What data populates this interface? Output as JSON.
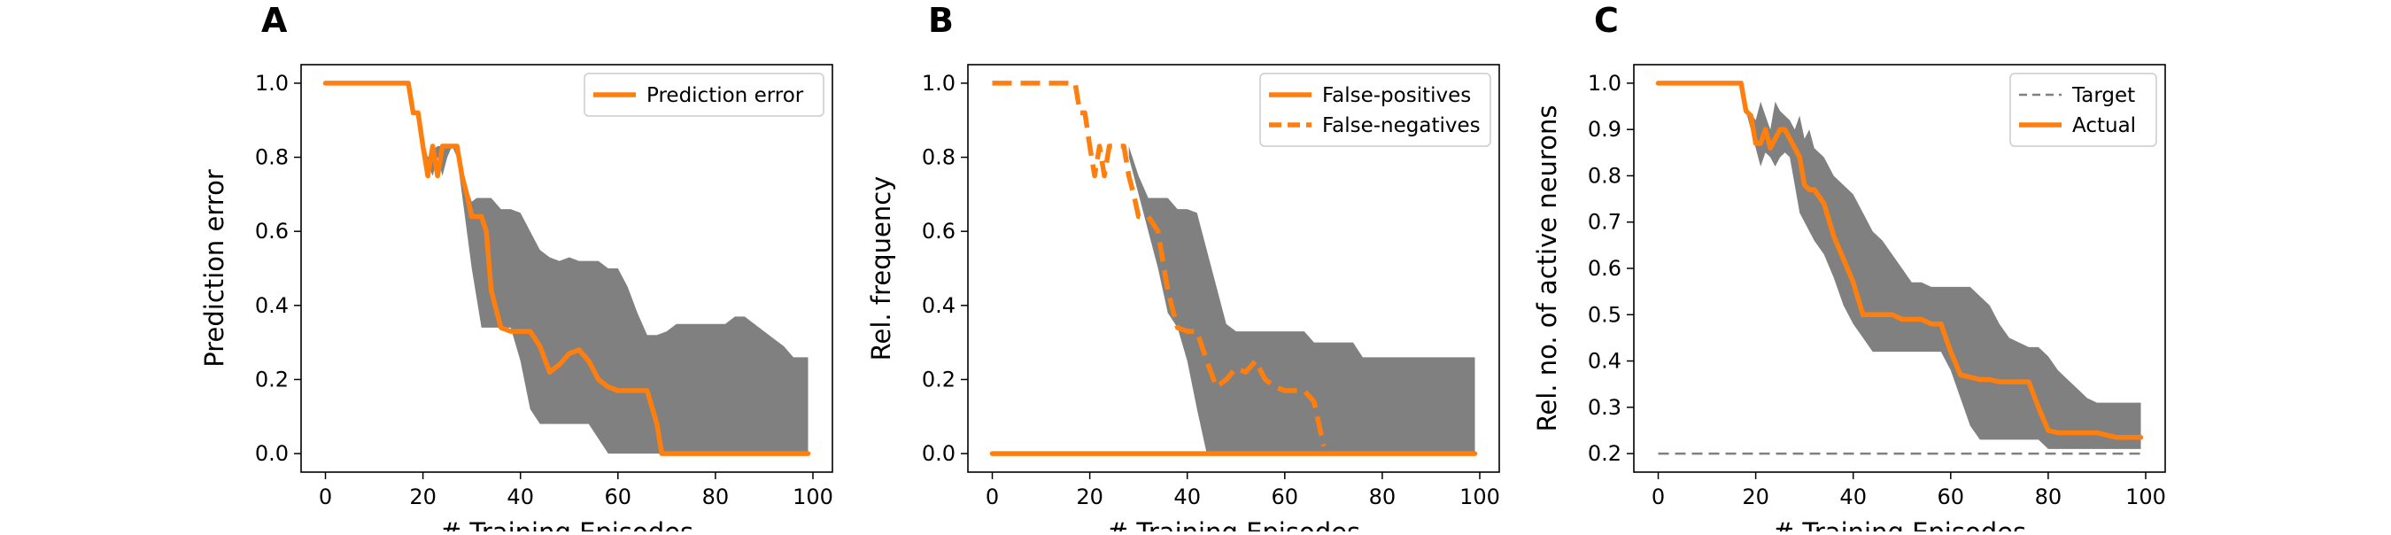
{
  "figure": {
    "panel_letters": [
      "A",
      "B",
      "C"
    ]
  },
  "chart_data": [
    {
      "type": "line",
      "panel": "A",
      "title": "",
      "xlabel": "# Training Episodes",
      "ylabel": "Prediction error",
      "xlim": [
        -5,
        104
      ],
      "ylim": [
        -0.05,
        1.05
      ],
      "xticks": [
        0,
        20,
        40,
        60,
        80,
        100
      ],
      "yticks": [
        0.0,
        0.2,
        0.4,
        0.6,
        0.8,
        1.0
      ],
      "ytick_decimals": 1,
      "grid": false,
      "legend": "top-right",
      "band": {
        "color": "#808080",
        "x": [
          17,
          18,
          20,
          21,
          22,
          23,
          24,
          25,
          26,
          27,
          28,
          29,
          30,
          31,
          32,
          34,
          36,
          38,
          40,
          42,
          44,
          46,
          48,
          50,
          52,
          54,
          56,
          58,
          60,
          62,
          64,
          66,
          68,
          70,
          72,
          74,
          76,
          78,
          80,
          82,
          84,
          86,
          88,
          90,
          92,
          94,
          96,
          98,
          99
        ],
        "lower": [
          1.0,
          0.92,
          0.85,
          0.78,
          0.75,
          0.8,
          0.75,
          0.8,
          0.83,
          0.8,
          0.7,
          0.6,
          0.5,
          0.42,
          0.34,
          0.34,
          0.34,
          0.34,
          0.25,
          0.12,
          0.08,
          0.08,
          0.08,
          0.08,
          0.08,
          0.08,
          0.04,
          0.0,
          0.0,
          0.0,
          0.0,
          0.0,
          0.0,
          0.0,
          0.0,
          0.0,
          0.0,
          0.0,
          0.0,
          0.0,
          0.0,
          0.0,
          0.0,
          0.0,
          0.0,
          0.0,
          0.0,
          0.0,
          0.0
        ],
        "upper": [
          1.0,
          0.92,
          0.85,
          0.8,
          0.82,
          0.83,
          0.83,
          0.83,
          0.83,
          0.82,
          0.78,
          0.72,
          0.68,
          0.69,
          0.69,
          0.69,
          0.66,
          0.66,
          0.65,
          0.6,
          0.55,
          0.53,
          0.52,
          0.53,
          0.52,
          0.52,
          0.52,
          0.5,
          0.5,
          0.45,
          0.38,
          0.32,
          0.32,
          0.33,
          0.35,
          0.35,
          0.35,
          0.35,
          0.35,
          0.35,
          0.37,
          0.37,
          0.35,
          0.33,
          0.31,
          0.29,
          0.26,
          0.26,
          0.26
        ]
      },
      "series": [
        {
          "name": "Prediction error",
          "color": "#ff7f0e",
          "dash": "solid",
          "x": [
            0,
            17,
            18,
            19,
            20,
            21,
            22,
            23,
            24,
            25,
            26,
            27,
            28,
            29,
            30,
            31,
            32,
            33,
            34,
            36,
            38,
            40,
            42,
            44,
            46,
            48,
            50,
            52,
            54,
            56,
            58,
            60,
            62,
            64,
            66,
            68,
            69,
            70,
            80,
            90,
            99
          ],
          "y": [
            1.0,
            1.0,
            0.92,
            0.92,
            0.83,
            0.75,
            0.83,
            0.75,
            0.83,
            0.83,
            0.83,
            0.83,
            0.75,
            0.7,
            0.64,
            0.64,
            0.64,
            0.6,
            0.44,
            0.34,
            0.33,
            0.33,
            0.33,
            0.29,
            0.22,
            0.24,
            0.27,
            0.28,
            0.25,
            0.2,
            0.18,
            0.17,
            0.17,
            0.17,
            0.17,
            0.08,
            0.0,
            0.0,
            0.0,
            0.0,
            0.0
          ]
        }
      ]
    },
    {
      "type": "line",
      "panel": "B",
      "title": "",
      "xlabel": "# Training Episodes",
      "ylabel": "Rel. frequency",
      "xlim": [
        -5,
        104
      ],
      "ylim": [
        -0.05,
        1.05
      ],
      "xticks": [
        0,
        20,
        40,
        60,
        80,
        100
      ],
      "yticks": [
        0.0,
        0.2,
        0.4,
        0.6,
        0.8,
        1.0
      ],
      "ytick_decimals": 1,
      "grid": false,
      "legend": "top-right",
      "band": {
        "color": "#808080",
        "x": [
          28,
          30,
          32,
          34,
          36,
          38,
          40,
          42,
          43,
          44,
          46,
          48,
          50,
          52,
          54,
          56,
          58,
          60,
          62,
          64,
          66,
          68,
          70,
          72,
          74,
          76,
          78,
          80,
          82,
          84,
          86,
          88,
          90,
          92,
          94,
          96,
          98,
          99
        ],
        "lower": [
          0.8,
          0.7,
          0.6,
          0.5,
          0.38,
          0.34,
          0.25,
          0.12,
          0.06,
          0.0,
          0.0,
          0.0,
          0.0,
          0.0,
          0.0,
          0.0,
          0.0,
          0.0,
          0.0,
          0.0,
          0.0,
          0.0,
          0.0,
          0.0,
          0.0,
          0.0,
          0.0,
          0.0,
          0.0,
          0.0,
          0.0,
          0.0,
          0.0,
          0.0,
          0.0,
          0.0,
          0.0,
          0.0
        ],
        "upper": [
          0.83,
          0.75,
          0.69,
          0.69,
          0.69,
          0.66,
          0.66,
          0.65,
          0.6,
          0.55,
          0.45,
          0.35,
          0.33,
          0.33,
          0.33,
          0.33,
          0.33,
          0.33,
          0.33,
          0.33,
          0.3,
          0.3,
          0.3,
          0.3,
          0.3,
          0.26,
          0.26,
          0.26,
          0.26,
          0.26,
          0.26,
          0.26,
          0.26,
          0.26,
          0.26,
          0.26,
          0.26,
          0.26
        ]
      },
      "series": [
        {
          "name": "False-positives",
          "color": "#ff7f0e",
          "dash": "solid",
          "x": [
            0,
            99
          ],
          "y": [
            0.0,
            0.0
          ]
        },
        {
          "name": "False-negatives",
          "color": "#ff7f0e",
          "dash": "dashed",
          "x": [
            0,
            17,
            18,
            19,
            20,
            21,
            22,
            23,
            24,
            25,
            26,
            27,
            28,
            29,
            30,
            31,
            32,
            34,
            36,
            38,
            40,
            42,
            44,
            46,
            48,
            50,
            52,
            54,
            56,
            58,
            60,
            62,
            64,
            66,
            67,
            68
          ],
          "y": [
            1.0,
            1.0,
            0.92,
            0.92,
            0.83,
            0.75,
            0.83,
            0.75,
            0.83,
            0.83,
            0.83,
            0.83,
            0.75,
            0.7,
            0.64,
            0.64,
            0.64,
            0.6,
            0.44,
            0.34,
            0.33,
            0.33,
            0.25,
            0.18,
            0.2,
            0.23,
            0.22,
            0.25,
            0.2,
            0.18,
            0.17,
            0.17,
            0.17,
            0.14,
            0.08,
            0.02
          ]
        }
      ]
    },
    {
      "type": "line",
      "panel": "C",
      "title": "",
      "xlabel": "# Training Episodes",
      "ylabel": "Rel. no. of active neurons",
      "xlim": [
        -5,
        104
      ],
      "ylim": [
        0.16,
        1.04
      ],
      "xticks": [
        0,
        20,
        40,
        60,
        80,
        100
      ],
      "yticks": [
        0.2,
        0.3,
        0.4,
        0.5,
        0.6,
        0.7,
        0.8,
        0.9,
        1.0
      ],
      "ytick_decimals": 1,
      "grid": false,
      "legend": "top-right",
      "band": {
        "color": "#808080",
        "x": [
          17,
          18,
          20,
          21,
          22,
          23,
          24,
          25,
          26,
          27,
          28,
          29,
          30,
          31,
          32,
          34,
          36,
          38,
          40,
          42,
          44,
          46,
          48,
          50,
          52,
          54,
          56,
          58,
          60,
          62,
          64,
          66,
          68,
          70,
          72,
          74,
          76,
          78,
          80,
          82,
          84,
          86,
          88,
          90,
          92,
          94,
          96,
          98,
          99
        ],
        "lower": [
          1.0,
          0.94,
          0.86,
          0.82,
          0.85,
          0.84,
          0.82,
          0.84,
          0.85,
          0.84,
          0.78,
          0.72,
          0.7,
          0.68,
          0.66,
          0.63,
          0.58,
          0.52,
          0.48,
          0.45,
          0.42,
          0.42,
          0.42,
          0.42,
          0.42,
          0.42,
          0.42,
          0.42,
          0.38,
          0.32,
          0.26,
          0.23,
          0.23,
          0.23,
          0.23,
          0.23,
          0.23,
          0.23,
          0.21,
          0.21,
          0.21,
          0.21,
          0.21,
          0.21,
          0.21,
          0.21,
          0.21,
          0.21,
          0.21
        ],
        "upper": [
          1.0,
          0.95,
          0.92,
          0.96,
          0.93,
          0.9,
          0.96,
          0.94,
          0.93,
          0.92,
          0.9,
          0.93,
          0.88,
          0.9,
          0.86,
          0.84,
          0.8,
          0.78,
          0.76,
          0.72,
          0.68,
          0.66,
          0.63,
          0.6,
          0.57,
          0.57,
          0.56,
          0.56,
          0.56,
          0.56,
          0.56,
          0.54,
          0.52,
          0.48,
          0.45,
          0.44,
          0.43,
          0.43,
          0.41,
          0.38,
          0.36,
          0.34,
          0.32,
          0.31,
          0.31,
          0.31,
          0.31,
          0.31,
          0.31
        ]
      },
      "series": [
        {
          "name": "Target",
          "color": "#808080",
          "dash": "thin-dashed",
          "x": [
            0,
            99
          ],
          "y": [
            0.2,
            0.2
          ]
        },
        {
          "name": "Actual",
          "color": "#ff7f0e",
          "dash": "solid",
          "x": [
            0,
            17,
            18,
            19,
            20,
            21,
            22,
            23,
            24,
            25,
            26,
            27,
            28,
            29,
            30,
            31,
            32,
            34,
            36,
            38,
            40,
            42,
            44,
            46,
            48,
            50,
            52,
            54,
            56,
            58,
            60,
            62,
            64,
            66,
            68,
            70,
            72,
            74,
            76,
            78,
            80,
            82,
            84,
            86,
            88,
            90,
            92,
            94,
            96,
            98,
            99
          ],
          "y": [
            1.0,
            1.0,
            0.94,
            0.93,
            0.87,
            0.87,
            0.9,
            0.86,
            0.88,
            0.9,
            0.9,
            0.88,
            0.86,
            0.84,
            0.78,
            0.77,
            0.77,
            0.74,
            0.67,
            0.62,
            0.57,
            0.5,
            0.5,
            0.5,
            0.5,
            0.49,
            0.49,
            0.49,
            0.48,
            0.48,
            0.42,
            0.37,
            0.365,
            0.36,
            0.36,
            0.355,
            0.355,
            0.355,
            0.355,
            0.3,
            0.25,
            0.245,
            0.245,
            0.245,
            0.245,
            0.245,
            0.24,
            0.235,
            0.235,
            0.235,
            0.235
          ]
        }
      ]
    }
  ]
}
